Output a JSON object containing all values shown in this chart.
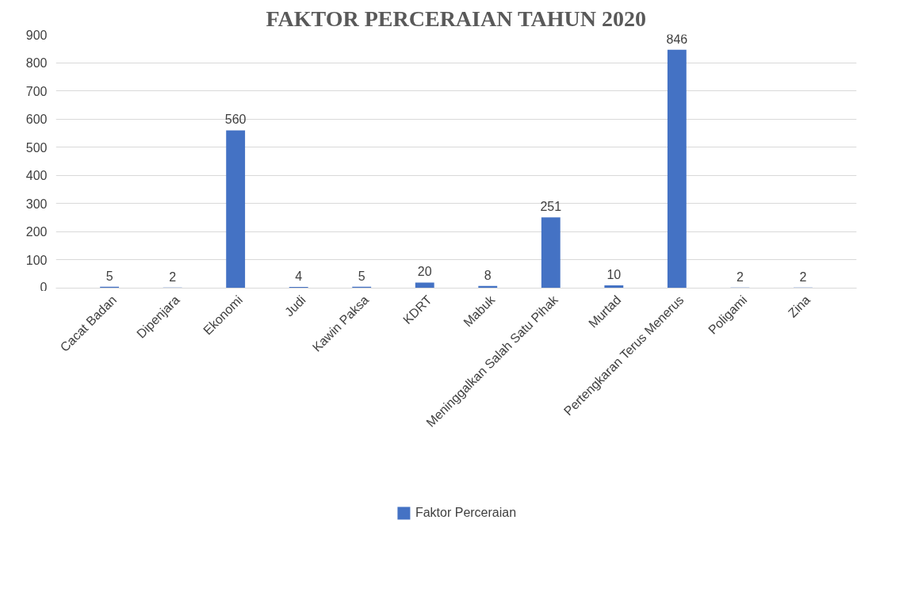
{
  "chart_data": {
    "type": "bar",
    "title": "FAKTOR PERCERAIAN TAHUN 2020",
    "categories": [
      "Cacat Badan",
      "Dipenjara",
      "Ekonomi",
      "Judi",
      "Kawin Paksa",
      "KDRT",
      "Mabuk",
      "Meninggalkan Salah Satu Pihak",
      "Murtad",
      "Pertengkaran Terus Menerus",
      "Poligami",
      "Zina"
    ],
    "series": [
      {
        "name": "Faktor Perceraian",
        "color": "#4472c4",
        "values": [
          5,
          2,
          560,
          4,
          5,
          20,
          8,
          251,
          10,
          846,
          2,
          2
        ]
      }
    ],
    "ylim": [
      0,
      900
    ],
    "yticks": [
      0,
      100,
      200,
      300,
      400,
      500,
      600,
      700,
      800,
      900
    ],
    "grid": "y",
    "legend": "bottom",
    "data_labels": true
  }
}
